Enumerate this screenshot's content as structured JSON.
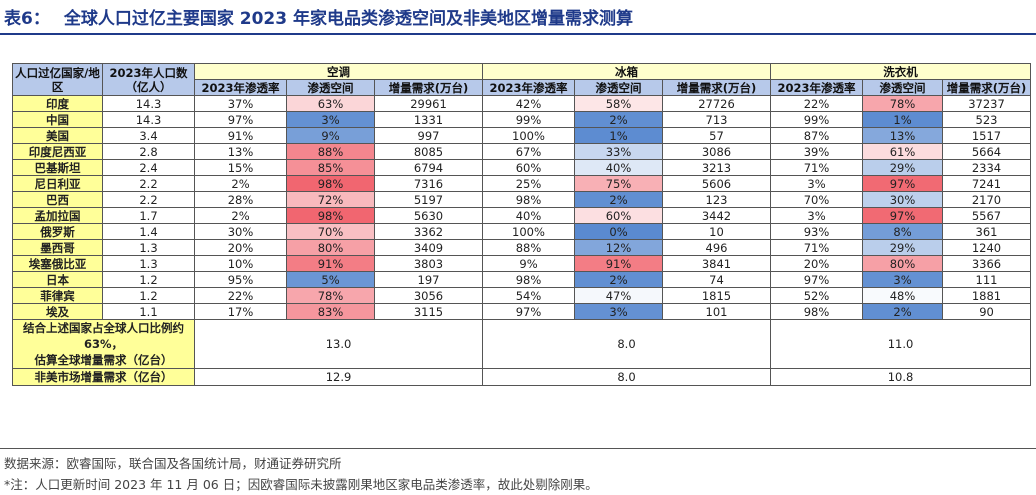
{
  "title": {
    "label": "表6：",
    "text": "全球人口过亿主要国家 2023 年家电品类渗透空间及非美地区增量需求测算"
  },
  "header": {
    "country_col": "人口过亿国家/地区",
    "pop_col": "2023年人口数（亿人）",
    "groups": [
      "空调",
      "冰箱",
      "洗衣机"
    ],
    "sub": [
      "2023年渗透率",
      "渗透空间",
      "增量需求(万台)"
    ]
  },
  "rows": [
    {
      "name": "印度",
      "pop": "14.3",
      "ac": [
        "37%",
        "63%",
        "29961"
      ],
      "fr": [
        "42%",
        "58%",
        "27726"
      ],
      "wm": [
        "22%",
        "78%",
        "37237"
      ]
    },
    {
      "name": "中国",
      "pop": "14.3",
      "ac": [
        "97%",
        "3%",
        "1331"
      ],
      "fr": [
        "99%",
        "2%",
        "713"
      ],
      "wm": [
        "99%",
        "1%",
        "523"
      ]
    },
    {
      "name": "美国",
      "pop": "3.4",
      "ac": [
        "91%",
        "9%",
        "997"
      ],
      "fr": [
        "100%",
        "1%",
        "57"
      ],
      "wm": [
        "87%",
        "13%",
        "1517"
      ]
    },
    {
      "name": "印度尼西亚",
      "pop": "2.8",
      "ac": [
        "13%",
        "88%",
        "8085"
      ],
      "fr": [
        "67%",
        "33%",
        "3086"
      ],
      "wm": [
        "39%",
        "61%",
        "5664"
      ]
    },
    {
      "name": "巴基斯坦",
      "pop": "2.4",
      "ac": [
        "15%",
        "85%",
        "6794"
      ],
      "fr": [
        "60%",
        "40%",
        "3213"
      ],
      "wm": [
        "71%",
        "29%",
        "2334"
      ]
    },
    {
      "name": "尼日利亚",
      "pop": "2.2",
      "ac": [
        "2%",
        "98%",
        "7316"
      ],
      "fr": [
        "25%",
        "75%",
        "5606"
      ],
      "wm": [
        "3%",
        "97%",
        "7241"
      ]
    },
    {
      "name": "巴西",
      "pop": "2.2",
      "ac": [
        "28%",
        "72%",
        "5197"
      ],
      "fr": [
        "98%",
        "2%",
        "123"
      ],
      "wm": [
        "70%",
        "30%",
        "2170"
      ]
    },
    {
      "name": "孟加拉国",
      "pop": "1.7",
      "ac": [
        "2%",
        "98%",
        "5630"
      ],
      "fr": [
        "40%",
        "60%",
        "3442"
      ],
      "wm": [
        "3%",
        "97%",
        "5567"
      ]
    },
    {
      "name": "俄罗斯",
      "pop": "1.4",
      "ac": [
        "30%",
        "70%",
        "3362"
      ],
      "fr": [
        "100%",
        "0%",
        "10"
      ],
      "wm": [
        "93%",
        "8%",
        "361"
      ]
    },
    {
      "name": "墨西哥",
      "pop": "1.3",
      "ac": [
        "20%",
        "80%",
        "3409"
      ],
      "fr": [
        "88%",
        "12%",
        "496"
      ],
      "wm": [
        "71%",
        "29%",
        "1240"
      ]
    },
    {
      "name": "埃塞俄比亚",
      "pop": "1.3",
      "ac": [
        "10%",
        "91%",
        "3803"
      ],
      "fr": [
        "9%",
        "91%",
        "3841"
      ],
      "wm": [
        "20%",
        "80%",
        "3366"
      ]
    },
    {
      "name": "日本",
      "pop": "1.2",
      "ac": [
        "95%",
        "5%",
        "197"
      ],
      "fr": [
        "98%",
        "2%",
        "74"
      ],
      "wm": [
        "97%",
        "3%",
        "111"
      ]
    },
    {
      "name": "菲律宾",
      "pop": "1.2",
      "ac": [
        "22%",
        "78%",
        "3056"
      ],
      "fr": [
        "54%",
        "47%",
        "1815"
      ],
      "wm": [
        "52%",
        "48%",
        "1881"
      ]
    },
    {
      "name": "埃及",
      "pop": "1.1",
      "ac": [
        "17%",
        "83%",
        "3115"
      ],
      "fr": [
        "97%",
        "3%",
        "101"
      ],
      "wm": [
        "98%",
        "2%",
        "90"
      ]
    }
  ],
  "summary": [
    {
      "label_lines": [
        "结合上述国家占全球人口比例约",
        "63%，",
        "估算全球增量需求（亿台）"
      ],
      "values": [
        "13.0",
        "8.0",
        "11.0"
      ]
    },
    {
      "label_lines": [
        "非美市场增量需求（亿台）"
      ],
      "values": [
        "12.9",
        "8.0",
        "10.8"
      ]
    }
  ],
  "notes": [
    "数据来源：欧睿国际，联合国及各国统计局，财通证券研究所",
    "*注：人口更新时间 2023 年 11 月 06 日；因欧睿国际未披露刚果地区家电品类渗透率，故此处剔除刚果。"
  ],
  "colors": {
    "title": "#1f3a8a",
    "header_bg": "#b7c9ea",
    "country_bg": "#ffff99",
    "heat_low": "#5a8ad0",
    "heat_mid": "#ffffff",
    "heat_high": "#f0606a"
  }
}
